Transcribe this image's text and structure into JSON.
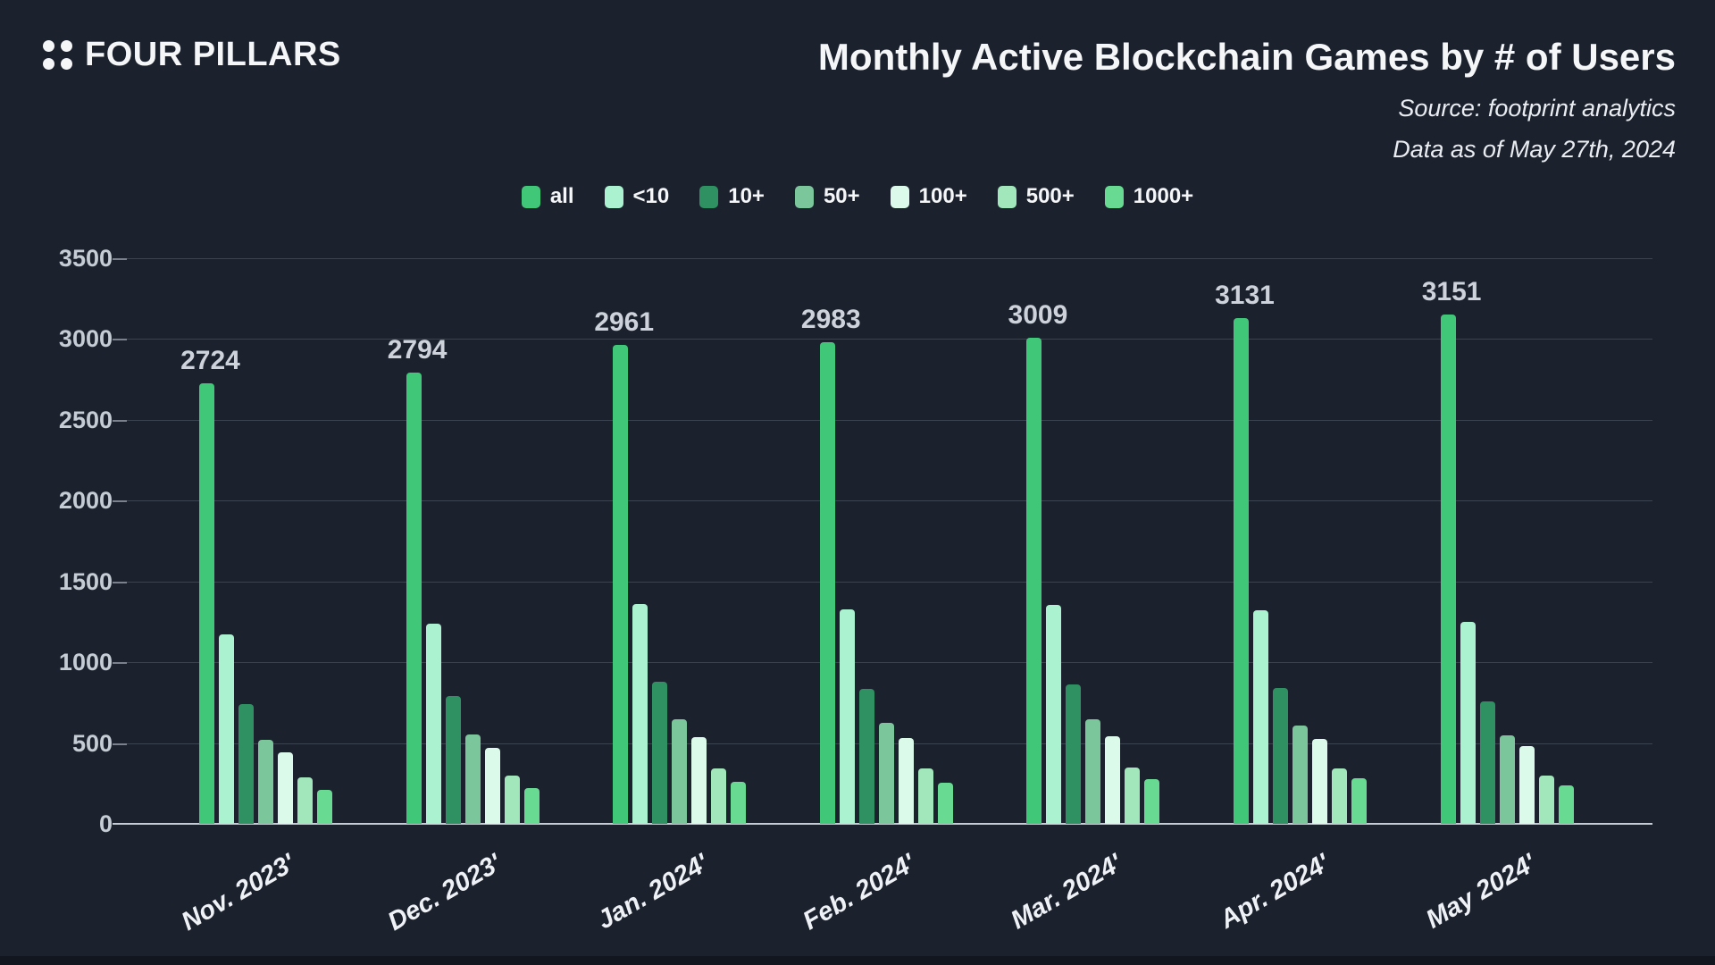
{
  "header": {
    "logo_text": "FOUR PILLARS",
    "title": "Monthly Active Blockchain Games by # of Users",
    "source_line": "Source: footprint analytics",
    "asof_line": "Data as of May 27th, 2024"
  },
  "chart_data": {
    "type": "bar",
    "title": "Monthly Active Blockchain Games by # of Users",
    "categories": [
      "Nov. 2023'",
      "Dec. 2023'",
      "Jan. 2024'",
      "Feb. 2024'",
      "Mar. 2024'",
      "Apr. 2024'",
      "May 2024'"
    ],
    "series": [
      {
        "name": "all",
        "color": "#40c878",
        "values": [
          2724,
          2794,
          2961,
          2983,
          3009,
          3131,
          3151
        ]
      },
      {
        "name": "<10",
        "color": "#abf2d0",
        "values": [
          1170,
          1240,
          1360,
          1325,
          1355,
          1320,
          1250
        ]
      },
      {
        "name": "10+",
        "color": "#2f9062",
        "values": [
          740,
          790,
          880,
          835,
          865,
          840,
          755
        ]
      },
      {
        "name": "50+",
        "color": "#7cc69b",
        "values": [
          520,
          555,
          645,
          625,
          645,
          610,
          550
        ]
      },
      {
        "name": "100+",
        "color": "#dcfae9",
        "values": [
          440,
          470,
          535,
          530,
          540,
          525,
          480
        ]
      },
      {
        "name": "500+",
        "color": "#a2e7bc",
        "values": [
          285,
          300,
          345,
          345,
          350,
          345,
          300
        ]
      },
      {
        "name": "1000+",
        "color": "#69da92",
        "values": [
          210,
          220,
          260,
          255,
          275,
          280,
          240
        ]
      }
    ],
    "bar_value_labels": {
      "series": "all",
      "values": [
        2724,
        2794,
        2961,
        2983,
        3009,
        3131,
        3151
      ]
    },
    "xlabel": "",
    "ylabel": "",
    "ylim": [
      0,
      3500
    ],
    "yticks": [
      0,
      500,
      1000,
      1500,
      2000,
      2500,
      3000,
      3500
    ],
    "grid": true,
    "legend_position": "top-center"
  },
  "colors": {
    "background": "#1b212d",
    "bottom_strip": "#12161f",
    "gridline": "#3c4350",
    "axis_line": "#c6ccd4",
    "tick_label": "#c6ccd4",
    "value_label": "#ced3db",
    "text": "#f4f6f8"
  }
}
